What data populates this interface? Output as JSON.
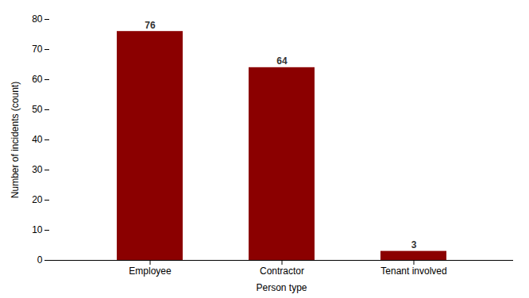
{
  "chart_data": {
    "type": "bar",
    "categories": [
      "Employee",
      "Contractor",
      "Tenant involved"
    ],
    "values": [
      76,
      64,
      3
    ],
    "color": "#8B0000",
    "xlabel": "Person type",
    "ylabel": "Number of incidents (count)",
    "ylim": [
      0,
      80
    ],
    "yticks": [
      0,
      10,
      20,
      30,
      40,
      50,
      60,
      70,
      80
    ],
    "grid": false,
    "data_labels": true
  }
}
